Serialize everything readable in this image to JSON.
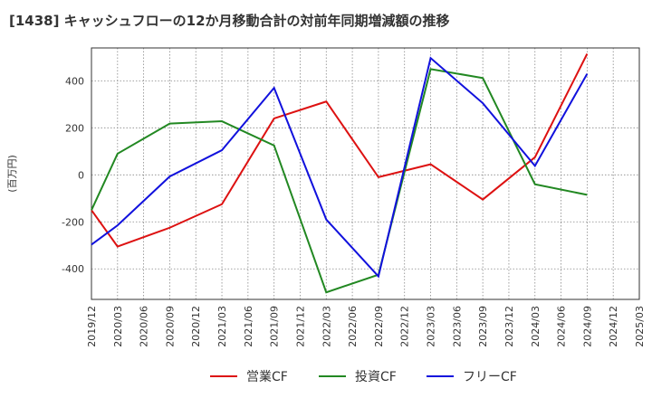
{
  "title": "[1438]  キャッシュフローの12か月移動合計の対前年同期増減額の推移",
  "chart_data": {
    "type": "line",
    "title": "[1438]  キャッシュフローの12か月移動合計の対前年同期増減額の推移",
    "ylabel": "(百万円)",
    "xlabel": "",
    "ylim": [
      -530,
      540
    ],
    "yticks": [
      -400,
      -200,
      0,
      200,
      400
    ],
    "ytick_labels": [
      "-400",
      "-200",
      "0",
      "200",
      "400"
    ],
    "grid": true,
    "legend_position": "bottom-center",
    "categories": [
      "2019/12",
      "2020/03",
      "2020/06",
      "2020/09",
      "2020/12",
      "2021/03",
      "2021/06",
      "2021/09",
      "2021/12",
      "2022/03",
      "2022/06",
      "2022/09",
      "2022/12",
      "2023/03",
      "2023/06",
      "2023/09",
      "2023/12",
      "2024/03",
      "2024/06",
      "2024/09",
      "2024/12",
      "2025/03"
    ],
    "series": [
      {
        "name": "営業CF",
        "color": "#dd1111",
        "values": [
          -150,
          -305,
          null,
          -225,
          null,
          -125,
          null,
          240,
          null,
          312,
          null,
          -10,
          null,
          45,
          null,
          -105,
          null,
          75,
          null,
          515,
          null,
          null
        ]
      },
      {
        "name": "投資CF",
        "color": "#228822",
        "values": [
          -150,
          90,
          null,
          218,
          null,
          228,
          null,
          125,
          null,
          -500,
          null,
          -425,
          null,
          450,
          null,
          412,
          null,
          -40,
          null,
          -85,
          null,
          null
        ]
      },
      {
        "name": "フリーCF",
        "color": "#1111dd",
        "values": [
          -297,
          -215,
          null,
          -7,
          null,
          105,
          null,
          370,
          null,
          -190,
          null,
          -432,
          null,
          497,
          null,
          305,
          null,
          38,
          null,
          430,
          null,
          null
        ]
      }
    ]
  }
}
